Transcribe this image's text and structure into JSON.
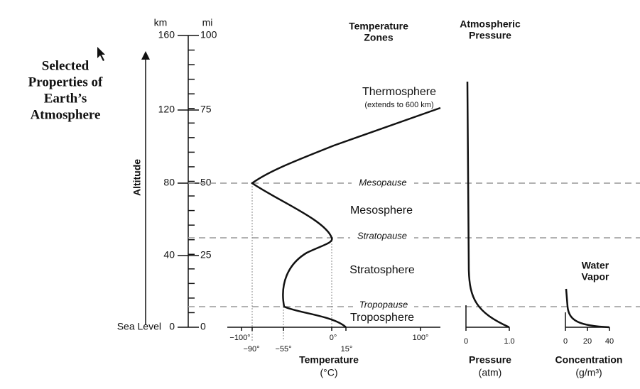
{
  "title": [
    "Selected",
    "Properties of",
    "Earth’s",
    "Atmosphere"
  ],
  "altitude_axis": {
    "label": "Altitude",
    "km_header": "km",
    "mi_header": "mi",
    "km_ticks": [
      "160",
      "120",
      "80",
      "40",
      "0"
    ],
    "mi_ticks": [
      "100",
      "75",
      "50",
      "25",
      "0"
    ],
    "sea_level": "Sea Level"
  },
  "temperature_zones": {
    "header": [
      "Temperature",
      "Zones"
    ],
    "thermosphere": "Thermosphere",
    "thermosphere_note": "(extends to 600 km)",
    "mesosphere": "Mesosphere",
    "stratosphere": "Stratosphere",
    "troposphere": "Troposphere",
    "mesopause": "Mesopause",
    "stratopause": "Stratopause",
    "tropopause": "Tropopause"
  },
  "temperature": {
    "label": "Temperature",
    "unit": "(°C)",
    "ticks_top": [
      "−100°",
      "0°",
      "100°"
    ],
    "ticks_bottom": [
      "−90°",
      "−55°",
      "15°"
    ]
  },
  "pressure": {
    "header": [
      "Atmospheric",
      "Pressure"
    ],
    "label": "Pressure",
    "unit": "(atm)",
    "ticks": [
      "0",
      "1.0"
    ]
  },
  "water_vapor": {
    "header": [
      "Water",
      "Vapor"
    ],
    "label": "Concentration",
    "unit": "(g/m³)",
    "ticks": [
      "0",
      "20",
      "40"
    ]
  }
}
